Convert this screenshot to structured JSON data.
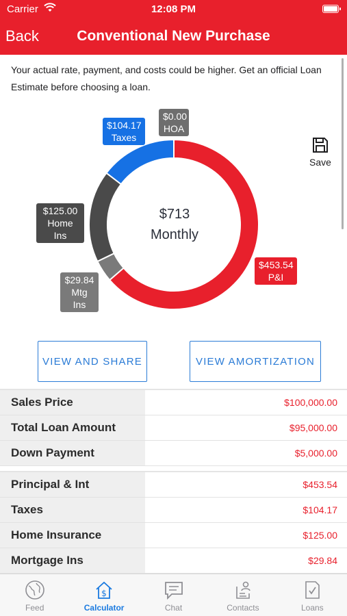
{
  "status": {
    "carrier": "Carrier",
    "time": "12:08 PM"
  },
  "nav": {
    "back": "Back",
    "title": "Conventional New Purchase"
  },
  "disclaimer": "Your actual rate, payment, and costs could be higher. Get an official Loan Estimate before choosing a loan.",
  "chart_data": {
    "type": "pie",
    "center_amount": "$713",
    "center_label": "Monthly",
    "slices": [
      {
        "label": "P&I",
        "value": 453.54,
        "display": "$453.54",
        "color": "#e8202c"
      },
      {
        "label": "Mtg Ins",
        "value": 29.84,
        "display": "$29.84",
        "color": "#7a7a7a"
      },
      {
        "label": "Home Ins",
        "value": 125.0,
        "display": "$125.00",
        "color": "#4a4a4a"
      },
      {
        "label": "Taxes",
        "value": 104.17,
        "display": "$104.17",
        "color": "#1671e4"
      },
      {
        "label": "HOA",
        "value": 0.0,
        "display": "$0.00",
        "color": "#6e6e6e"
      }
    ]
  },
  "save": {
    "label": "Save"
  },
  "buttons": {
    "share": "VIEW AND SHARE",
    "amortization": "VIEW AMORTIZATION"
  },
  "loan_table": [
    {
      "label": "Sales Price",
      "value": "$100,000.00"
    },
    {
      "label": "Total Loan Amount",
      "value": "$95,000.00"
    },
    {
      "label": "Down Payment",
      "value": "$5,000.00"
    }
  ],
  "payment_table": [
    {
      "label": "Principal & Int",
      "value": "$453.54"
    },
    {
      "label": "Taxes",
      "value": "$104.17"
    },
    {
      "label": "Home Insurance",
      "value": "$125.00"
    },
    {
      "label": "Mortgage Ins",
      "value": "$29.84"
    }
  ],
  "tabs": [
    {
      "label": "Feed",
      "icon": "globe-icon"
    },
    {
      "label": "Calculator",
      "icon": "calculator-house-icon",
      "active": true
    },
    {
      "label": "Chat",
      "icon": "chat-icon"
    },
    {
      "label": "Contacts",
      "icon": "contacts-icon"
    },
    {
      "label": "Loans",
      "icon": "loans-document-icon"
    }
  ],
  "colors": {
    "brand_red": "#e8202c",
    "accent_blue": "#2a7bd6"
  }
}
